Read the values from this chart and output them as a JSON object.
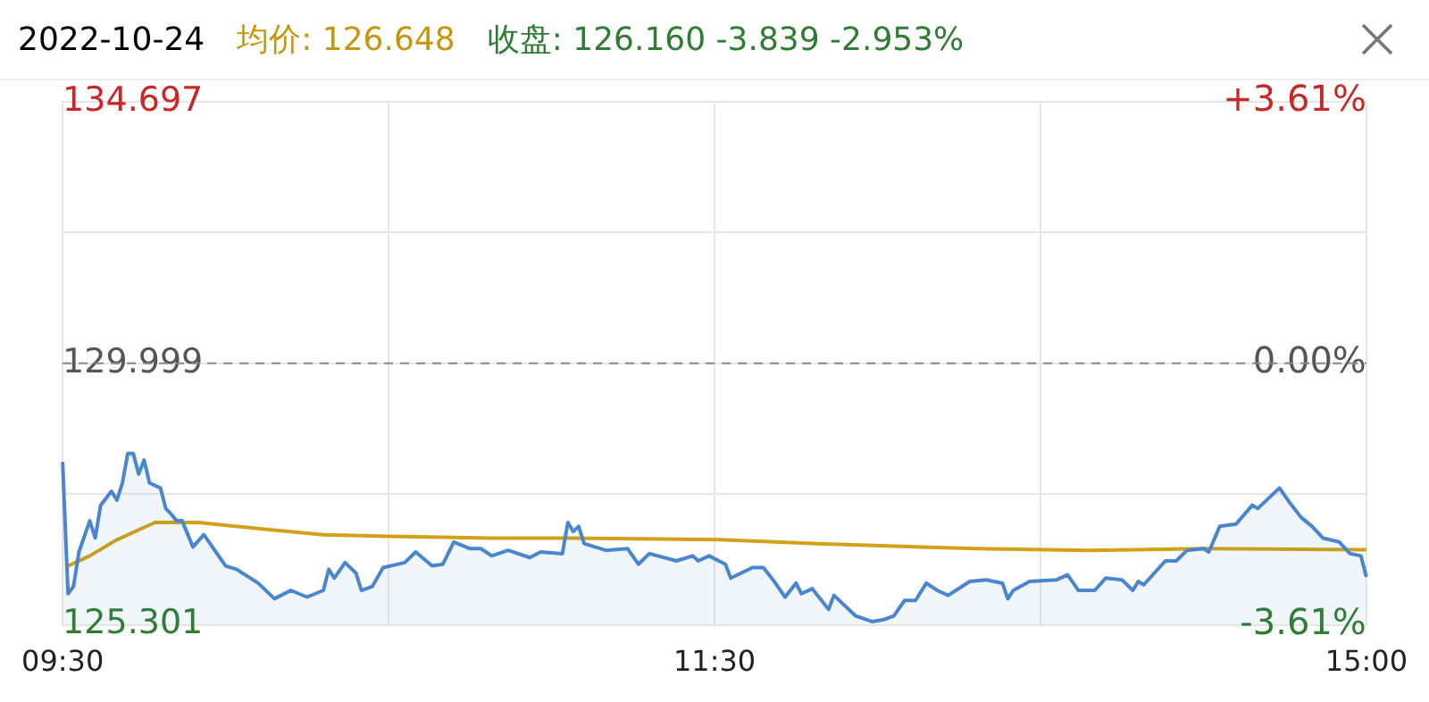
{
  "chart_data": {
    "type": "line",
    "title": "2022-10-24",
    "annotations": [
      "均价: 126.648",
      "收盘: 126.160 -3.839 -2.953%"
    ],
    "categories": [
      "09:30",
      null,
      null,
      null,
      null,
      null,
      null,
      null,
      null,
      null,
      null,
      null,
      null,
      null,
      null,
      null,
      null,
      null,
      null,
      null,
      null,
      null,
      null,
      null,
      null,
      null,
      null,
      null,
      null,
      null,
      null,
      null,
      null,
      null,
      null,
      null,
      null,
      null,
      null,
      null,
      null,
      null,
      null,
      null,
      null,
      null,
      null,
      null,
      null,
      null,
      null,
      null,
      null,
      null,
      null,
      null,
      null,
      null,
      null,
      null,
      null,
      null,
      null,
      null,
      null,
      null,
      null,
      null,
      null,
      null,
      null,
      null,
      null,
      null,
      null,
      null,
      null,
      null,
      null,
      null,
      null,
      null,
      null,
      null,
      null,
      null,
      null,
      null,
      null,
      null,
      null,
      null,
      null,
      null,
      null,
      null,
      null,
      null,
      null,
      null,
      null,
      null,
      null,
      null,
      null,
      null,
      null,
      null,
      null,
      null,
      null,
      null,
      null,
      null,
      null,
      null,
      null,
      null,
      null,
      null,
      "11:30",
      null,
      null,
      null,
      null,
      null,
      null,
      null,
      null,
      null,
      null,
      null,
      null,
      null,
      null,
      null,
      null,
      null,
      null,
      null,
      null,
      null,
      null,
      null,
      null,
      null,
      null,
      null,
      null,
      null,
      null,
      null,
      null,
      null,
      null,
      null,
      null,
      null,
      null,
      null,
      null,
      null,
      null,
      null,
      null,
      null,
      null,
      null,
      null,
      null,
      null,
      null,
      null,
      null,
      null,
      null,
      null,
      null,
      null,
      null,
      null,
      null,
      null,
      null,
      null,
      null,
      null,
      null,
      null,
      null,
      null,
      null,
      null,
      null,
      null,
      null,
      null,
      null,
      null,
      null,
      null,
      null,
      null,
      null,
      null,
      null,
      null,
      null,
      null,
      null,
      null,
      null,
      null,
      null,
      null,
      null,
      null,
      null,
      null,
      null,
      null,
      null,
      null,
      null,
      null,
      null,
      null,
      null,
      null,
      null,
      null,
      null,
      null,
      null,
      null,
      null,
      null,
      null,
      null,
      null,
      "15:00"
    ],
    "series": [
      {
        "type": "area",
        "color": "#4a86cf",
        "values": [
          128.23,
          125.86,
          125.99,
          126.61,
          null,
          127.17,
          126.86,
          127.45,
          null,
          127.7,
          127.54,
          127.85,
          128.38,
          128.38,
          128.01,
          128.26,
          127.85,
          null,
          127.76,
          127.39,
          127.29,
          127.17,
          127.17,
          null,
          126.7,
          null,
          126.92,
          null,
          null,
          null,
          126.36,
          null,
          126.3,
          null,
          null,
          null,
          126.05,
          null,
          null,
          125.77,
          null,
          null,
          125.92,
          null,
          null,
          125.8,
          null,
          null,
          125.92,
          126.3,
          126.14,
          null,
          126.42,
          null,
          126.23,
          125.92,
          null,
          125.99,
          null,
          126.33,
          null,
          null,
          null,
          126.42,
          null,
          126.61,
          null,
          null,
          126.36,
          null,
          126.39,
          null,
          126.79,
          null,
          null,
          126.67,
          null,
          126.67,
          null,
          126.54,
          null,
          null,
          126.64,
          null,
          null,
          null,
          126.51,
          null,
          126.61,
          null,
          null,
          null,
          126.58,
          127.14,
          126.98,
          127.07,
          126.76,
          null,
          126.7,
          null,
          126.64,
          null,
          null,
          null,
          126.67,
          null,
          126.39,
          null,
          126.58,
          null,
          null,
          null,
          null,
          126.45,
          null,
          null,
          126.54,
          126.45,
          null,
          126.54,
          null,
          null,
          126.39,
          126.14,
          null,
          null,
          null,
          126.33,
          null,
          126.33,
          null,
          126.08,
          null,
          125.8,
          null,
          126.05,
          125.86,
          null,
          125.95,
          null,
          null,
          125.58,
          125.83,
          null,
          null,
          null,
          125.46,
          null,
          null,
          125.36,
          null,
          125.39,
          null,
          125.46,
          null,
          125.74,
          null,
          125.74,
          null,
          126.05,
          null,
          125.92,
          null,
          125.83,
          null,
          null,
          null,
          126.08,
          null,
          null,
          126.11,
          null,
          null,
          126.05,
          125.77,
          125.92,
          null,
          null,
          126.08,
          null,
          null,
          null,
          null,
          126.11,
          null,
          126.2,
          null,
          125.92,
          null,
          null,
          125.92,
          null,
          126.14,
          null,
          null,
          126.11,
          null,
          125.92,
          126.08,
          126.02,
          null,
          null,
          null,
          126.45,
          null,
          126.45,
          null,
          126.64,
          null,
          null,
          126.67,
          126.61,
          null,
          127.07,
          null,
          null,
          127.11,
          null,
          null,
          127.45,
          127.39,
          null,
          null,
          null,
          127.76,
          null,
          127.48,
          null,
          127.23,
          null,
          127.07,
          null,
          126.86,
          null,
          null,
          126.79,
          null,
          126.58,
          null,
          126.54,
          126.16
        ]
      },
      {
        "type": "line",
        "color": "#d4a017",
        "values": [
          null,
          126.36,
          null,
          null,
          null,
          126.54,
          null,
          null,
          null,
          null,
          126.83,
          null,
          null,
          null,
          null,
          null,
          null,
          127.14,
          null,
          null,
          null,
          null,
          null,
          null,
          null,
          127.14,
          null,
          null,
          null,
          null,
          null,
          null,
          null,
          null,
          null,
          null,
          null,
          null,
          127.01,
          null,
          null,
          null,
          null,
          null,
          null,
          null,
          null,
          null,
          126.92,
          null,
          null,
          null,
          null,
          null,
          null,
          null,
          null,
          null,
          null,
          null,
          126.89,
          null,
          null,
          null,
          null,
          null,
          null,
          null,
          null,
          null,
          null,
          null,
          null,
          null,
          null,
          null,
          null,
          null,
          null,
          126.86,
          null,
          null,
          null,
          null,
          null,
          null,
          null,
          null,
          null,
          null,
          null,
          null,
          null,
          126.86,
          null,
          null,
          null,
          null,
          null,
          null,
          null,
          null,
          null,
          null,
          null,
          null,
          null,
          null,
          null,
          null,
          null,
          null,
          null,
          null,
          null,
          null,
          null,
          null,
          null,
          null,
          null,
          126.83,
          null,
          null,
          null,
          null,
          null,
          null,
          null,
          null,
          null,
          null,
          null,
          null,
          null,
          null,
          null,
          null,
          null,
          126.76,
          null,
          null,
          null,
          null,
          null,
          null,
          null,
          null,
          null,
          null,
          null,
          null,
          null,
          null,
          null,
          null,
          null,
          null,
          126.7,
          null,
          null,
          null,
          null,
          null,
          null,
          null,
          null,
          null,
          126.67,
          null,
          null,
          null,
          null,
          null,
          null,
          null,
          null,
          null,
          null,
          null,
          null,
          null,
          null,
          null,
          null,
          null,
          null,
          null,
          null,
          126.64,
          null,
          null,
          null,
          null,
          null,
          null,
          null,
          null,
          null,
          null,
          null,
          null,
          null,
          null,
          null,
          null,
          null,
          null,
          null,
          null,
          126.67,
          null,
          null,
          null,
          null,
          null,
          null,
          null,
          null,
          null,
          null,
          null,
          null,
          null,
          null,
          null,
          null,
          null,
          null,
          null,
          null,
          null,
          null,
          null,
          null,
          null,
          null,
          null,
          null,
          null,
          126.65
        ]
      }
    ],
    "ylim": [
      125.301,
      134.697
    ],
    "yticks": [
      125.301,
      {
        "value": 127.65,
        "label": null
      },
      129.999,
      {
        "value": 132.348,
        "label": null
      },
      134.697
    ],
    "y2lim": [
      -3.61,
      3.61
    ],
    "y2ticks": [
      {
        "value": -3.61,
        "label": "-3.61%"
      },
      {
        "value": 0,
        "label": "0.00%"
      },
      {
        "value": 3.61,
        "label": "+3.61%"
      }
    ],
    "ref_lines": [
      {
        "axis": "y",
        "value": 129.999,
        "color": "#888888",
        "line_style": "dashed"
      }
    ],
    "grid": true,
    "legend": false,
    "marker": "none",
    "line_style": "solid"
  }
}
